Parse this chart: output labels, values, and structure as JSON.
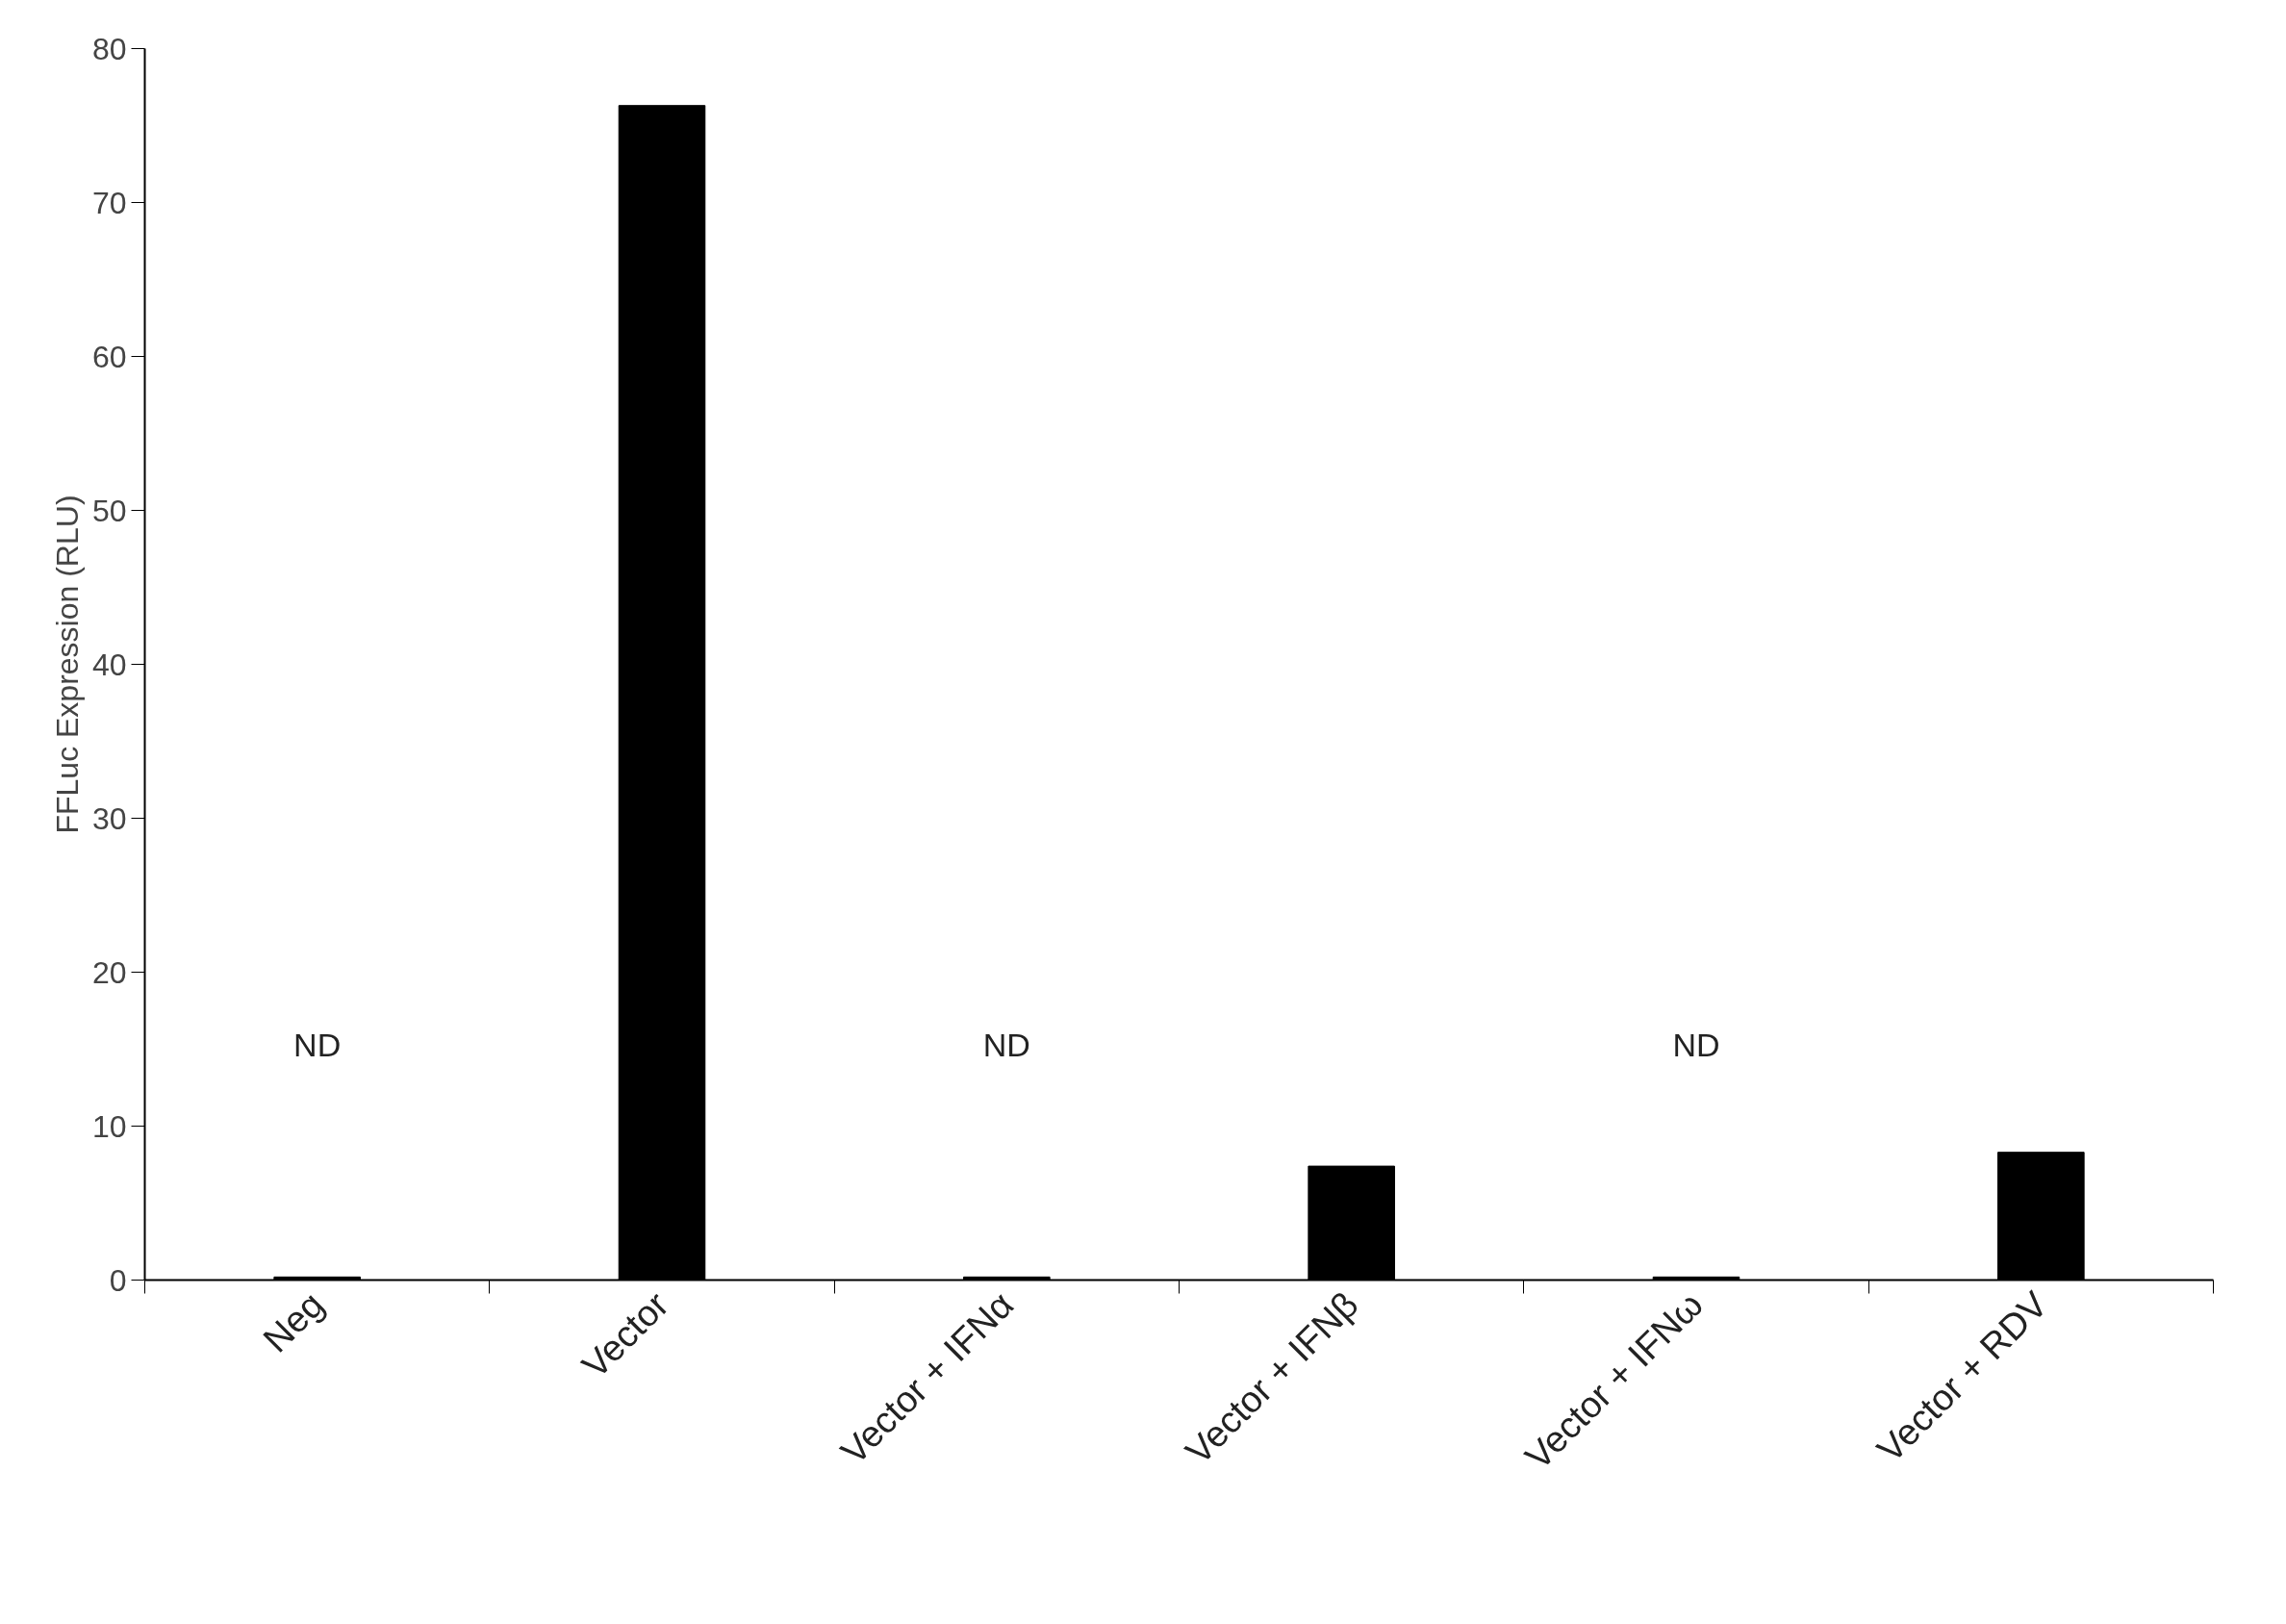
{
  "chart_data": {
    "type": "bar",
    "ylabel": "FFLuc Expression (RLU)",
    "categories": [
      "Neg",
      "Vector",
      "Vector + IFNα",
      "Vector + IFNβ",
      "Vector + IFNω",
      "Vector + RDV"
    ],
    "series": [
      {
        "color": "#000000",
        "values": [
          0.2,
          76.3,
          0.2,
          7.4,
          0.2,
          8.3
        ]
      }
    ],
    "ylim": [
      0,
      80
    ],
    "yticks": [
      0,
      10,
      20,
      30,
      40,
      50,
      60,
      70,
      80
    ],
    "grid": false,
    "annotations": [
      "ND",
      "ND",
      "ND"
    ]
  }
}
